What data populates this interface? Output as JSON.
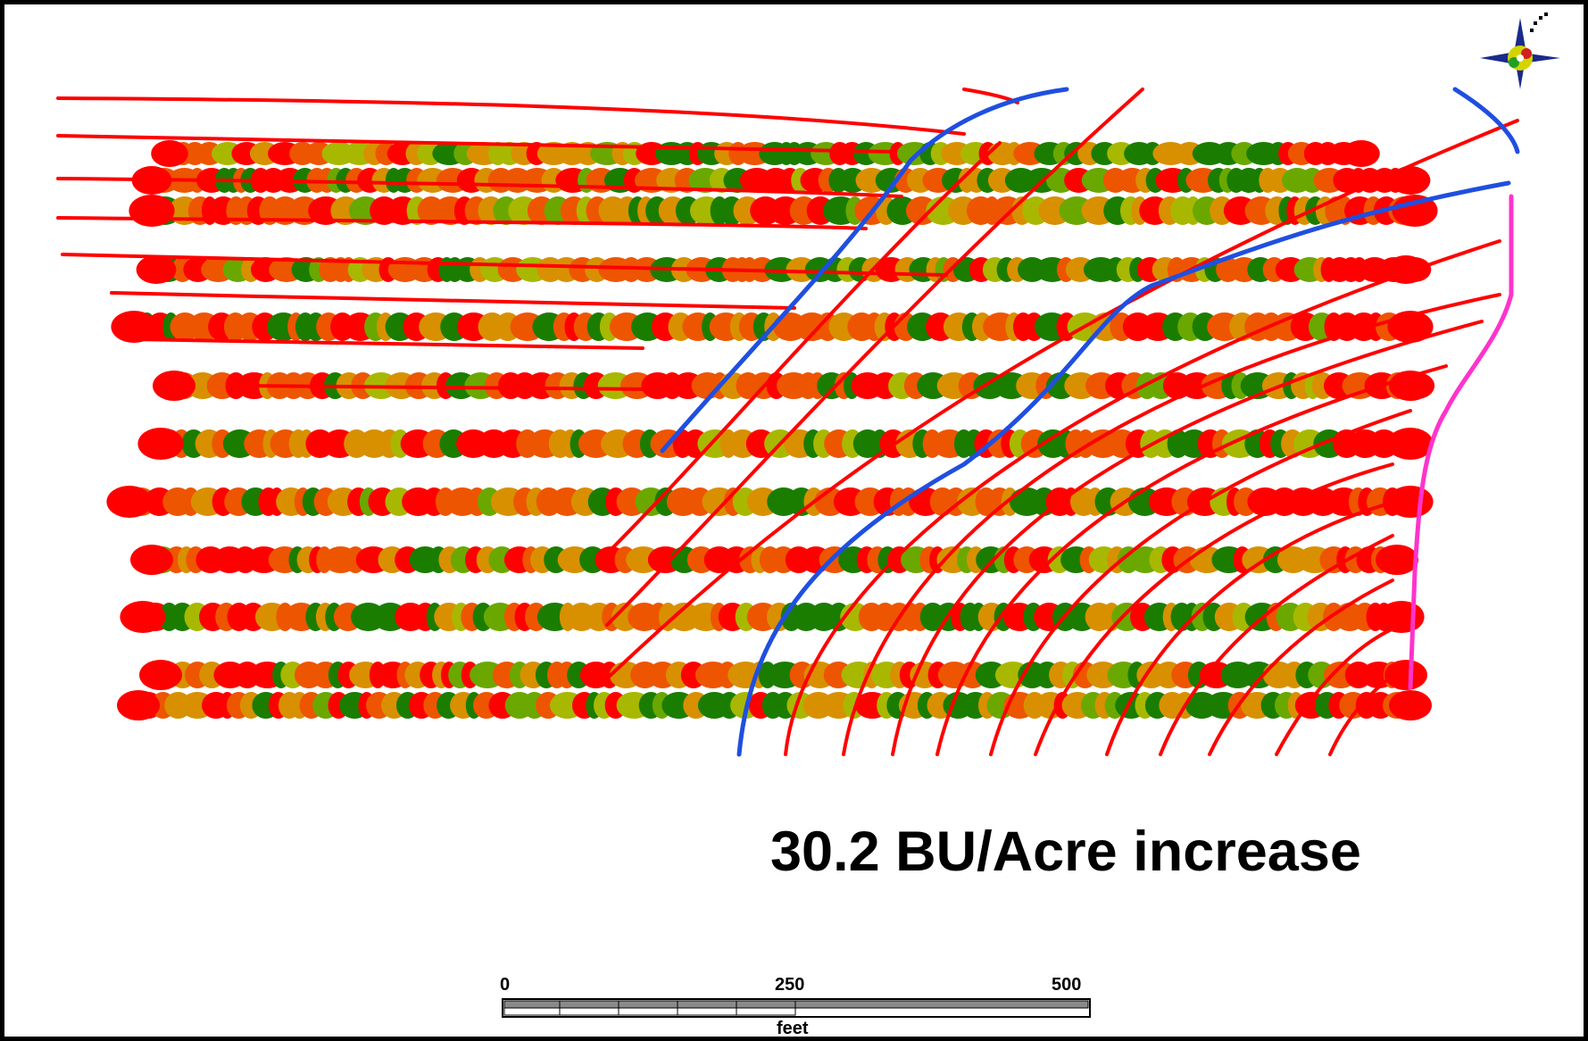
{
  "headline": "30.2 BU/Acre increase",
  "scale_bar": {
    "ticks": [
      "0",
      "250",
      "500"
    ],
    "unit": "feet"
  },
  "legend_colors": {
    "low": "#ff0000",
    "mid_low": "#ee5500",
    "mid": "#d89000",
    "mid_high": "#a8b800",
    "high_light": "#6aa800",
    "high": "#1a7d00",
    "tile_line": "#ff0000",
    "main_line": "#1f4fe0",
    "boundary_line": "#ff33cc"
  },
  "icons": {
    "north_arrow": "compass-rose-icon"
  }
}
